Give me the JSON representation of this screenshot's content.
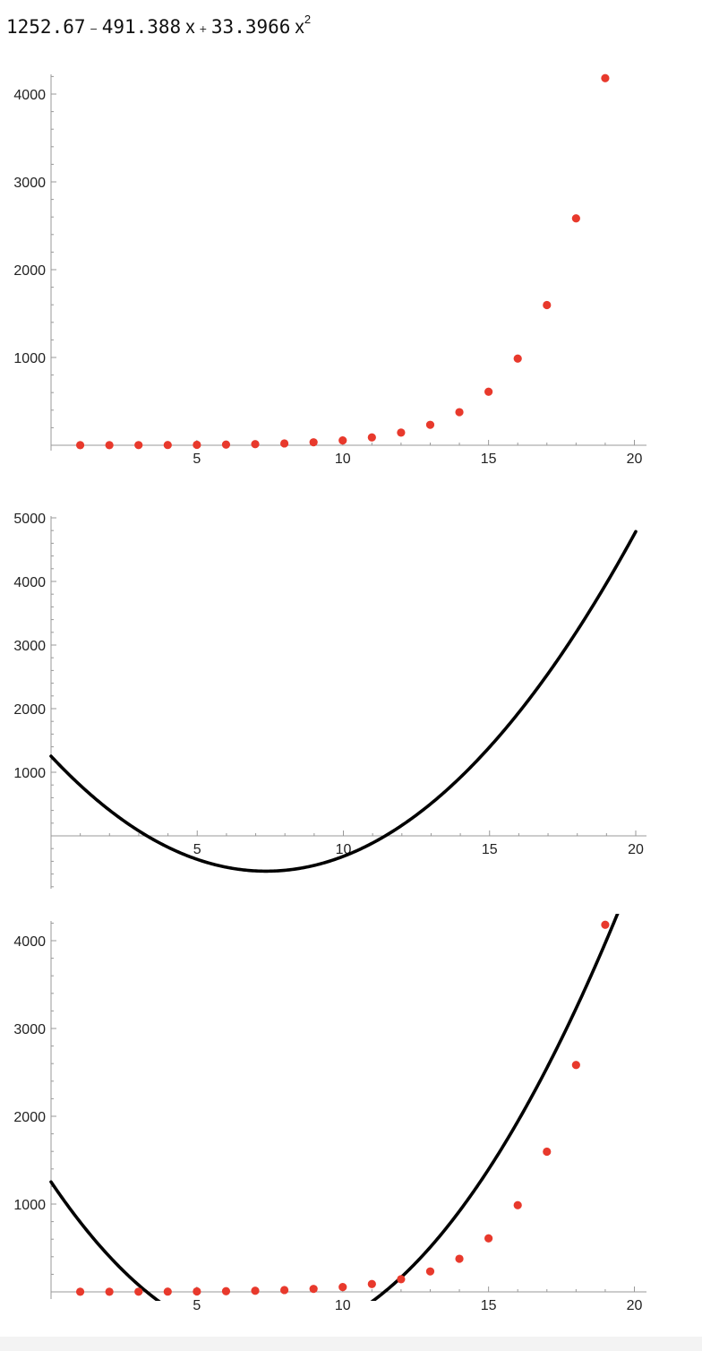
{
  "formula": {
    "c0": "1252.67",
    "op1": "−",
    "c1": "491.388",
    "var1": "x",
    "op2": "+",
    "c2": "33.3966",
    "var2": "x",
    "exp2": "2"
  },
  "colors": {
    "points": "#e8392c",
    "curve": "#000000",
    "axis": "#999999"
  },
  "chart_data": [
    {
      "type": "scatter",
      "x": [
        1,
        2,
        3,
        4,
        5,
        6,
        7,
        8,
        9,
        10,
        11,
        12,
        13,
        14,
        15,
        16,
        17,
        18,
        19
      ],
      "y": [
        1,
        1,
        2,
        3,
        5,
        8,
        13,
        21,
        34,
        55,
        89,
        144,
        233,
        377,
        610,
        987,
        1597,
        2584,
        4181
      ],
      "xlim": [
        0,
        20.4
      ],
      "ylim": [
        0,
        4200
      ],
      "x_ticks": [
        5,
        10,
        15,
        20
      ],
      "y_ticks": [
        1000,
        2000,
        3000,
        4000
      ],
      "grid": false
    },
    {
      "type": "line",
      "function": "1252.67 - 491.388 x + 33.3966 x^2",
      "coefficients": [
        1252.67,
        -491.388,
        33.3966
      ],
      "xlim": [
        0,
        20
      ],
      "ylim": [
        -850,
        5100
      ],
      "x_ticks": [
        5,
        10,
        15,
        20
      ],
      "y_ticks": [
        1000,
        2000,
        3000,
        4000,
        5000
      ],
      "grid": false
    },
    {
      "type": "scatter",
      "overlay_function": "1252.67 - 491.388 x + 33.3966 x^2",
      "coefficients": [
        1252.67,
        -491.388,
        33.3966
      ],
      "x": [
        1,
        2,
        3,
        4,
        5,
        6,
        7,
        8,
        9,
        10,
        11,
        12,
        13,
        14,
        15,
        16,
        17,
        18,
        19
      ],
      "y": [
        1,
        1,
        2,
        3,
        5,
        8,
        13,
        21,
        34,
        55,
        89,
        144,
        233,
        377,
        610,
        987,
        1597,
        2584,
        4181
      ],
      "xlim": [
        0,
        20.4
      ],
      "ylim": [
        0,
        4200
      ],
      "x_ticks": [
        5,
        10,
        15,
        20
      ],
      "y_ticks": [
        1000,
        2000,
        3000,
        4000
      ],
      "grid": false
    }
  ]
}
